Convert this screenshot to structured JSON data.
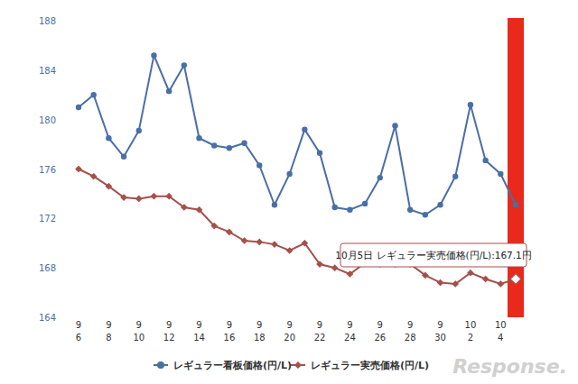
{
  "chart_data": {
    "type": "line",
    "categories": [
      "9\n6",
      null,
      "9\n8",
      null,
      "9\n10",
      null,
      "9\n12",
      null,
      "9\n14",
      null,
      "9\n16",
      null,
      "9\n18",
      null,
      "9\n20",
      null,
      "9\n22",
      null,
      "9\n24",
      null,
      "9\n26",
      null,
      "9\n28",
      null,
      "9\n30",
      null,
      "10\n2",
      null,
      "10\n4",
      null
    ],
    "series": [
      {
        "name": "レギュラー看板価格(円/L)",
        "color": "#4a6fa5",
        "marker": "circle",
        "values": [
          181.0,
          182.0,
          178.5,
          177.0,
          179.1,
          185.2,
          182.3,
          184.4,
          178.5,
          177.9,
          177.7,
          178.1,
          176.3,
          173.1,
          175.6,
          179.2,
          177.3,
          172.9,
          172.7,
          173.2,
          175.3,
          179.5,
          172.7,
          172.3,
          173.1,
          175.4,
          181.2,
          176.7,
          175.6,
          173.1
        ]
      },
      {
        "name": "レギュラー実売価格(円/L)",
        "color": "#a5504a",
        "marker": "diamond",
        "values": [
          176.0,
          175.4,
          174.6,
          173.7,
          173.6,
          173.8,
          173.8,
          172.9,
          172.7,
          171.4,
          170.9,
          170.2,
          170.1,
          169.9,
          169.4,
          170.0,
          168.3,
          168.0,
          167.5,
          168.4,
          168.3,
          168.3,
          168.3,
          167.4,
          166.8,
          166.7,
          167.6,
          167.1,
          166.7,
          167.1
        ]
      }
    ],
    "ylim": [
      164,
      188
    ],
    "yticks": [
      164,
      168,
      172,
      176,
      180,
      184,
      188
    ],
    "grid": false,
    "legend": "bottom",
    "annotations": [
      "10月5日 レギュラー実売価格(円/L):167.1円"
    ],
    "watermark": "Response."
  }
}
